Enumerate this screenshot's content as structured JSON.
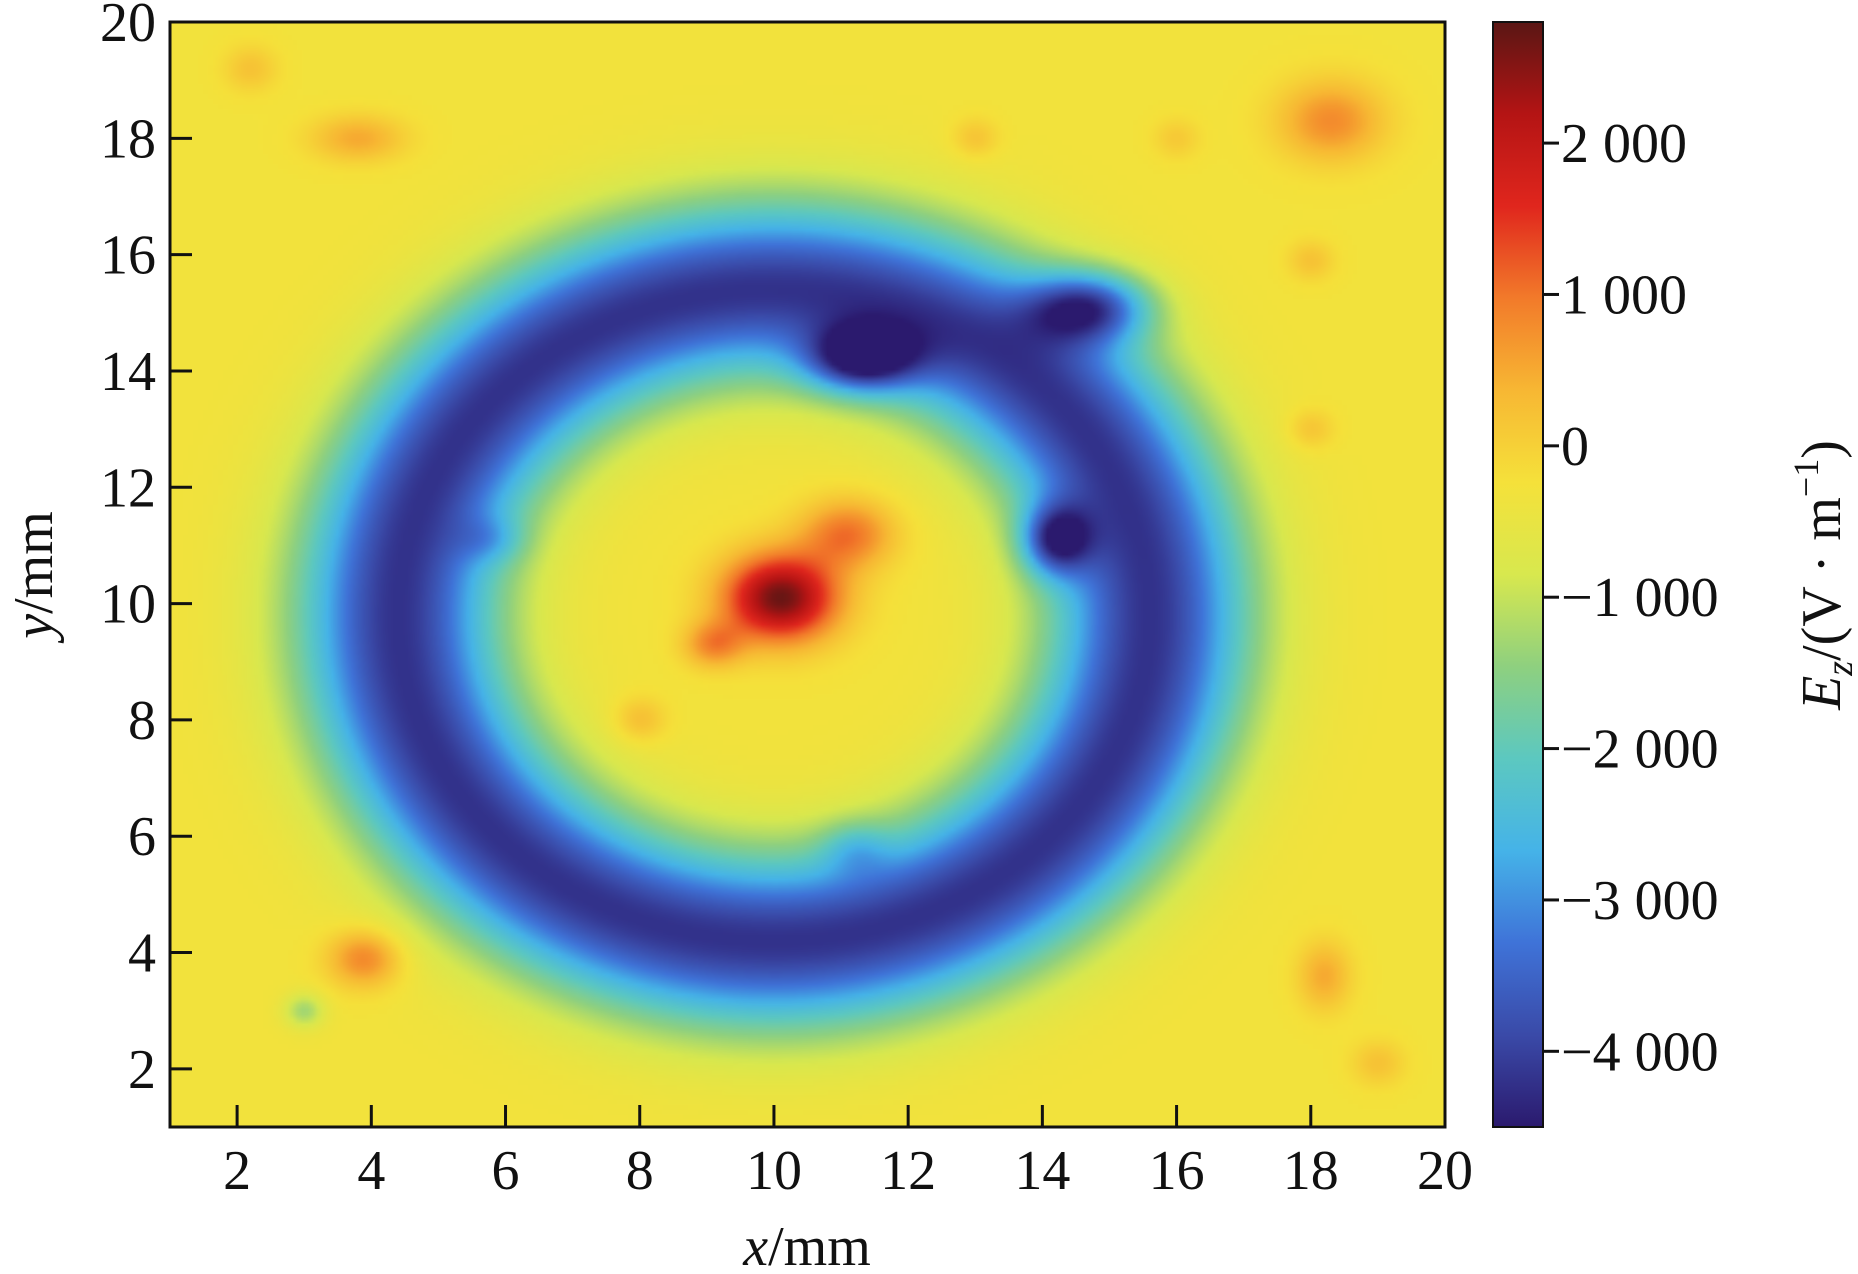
{
  "chart_data": {
    "type": "heatmap",
    "xlabel": {
      "var": "x",
      "unit": "/mm"
    },
    "ylabel": {
      "var": "y",
      "unit": "/mm"
    },
    "xlim": [
      1,
      20
    ],
    "ylim": [
      1,
      20
    ],
    "x_ticks": [
      2,
      4,
      6,
      8,
      10,
      12,
      14,
      16,
      18,
      20
    ],
    "y_ticks": [
      2,
      4,
      6,
      8,
      10,
      12,
      14,
      16,
      18,
      20
    ],
    "x_tick_labels": [
      "2",
      "4",
      "6",
      "8",
      "10",
      "12",
      "14",
      "16",
      "18",
      "20"
    ],
    "y_tick_labels": [
      "2",
      "4",
      "6",
      "8",
      "10",
      "12",
      "14",
      "16",
      "18",
      "20"
    ],
    "colorbar": {
      "label": {
        "var": "E",
        "sub": "z",
        "unit_open": "/(V · m",
        "sup": "−1",
        "unit_close": ")"
      },
      "range": [
        -4500,
        2800
      ],
      "ticks": [
        -4000,
        -3000,
        -2000,
        -1000,
        0,
        1000,
        2000
      ],
      "tick_labels": [
        "−4 000",
        "−3 000",
        "−2 000",
        "−1 000",
        "0",
        "1 000",
        "2 000"
      ],
      "colormap": [
        "#2b1a6e",
        "#3a4aa8",
        "#3f73d8",
        "#45b3e8",
        "#5cc8c0",
        "#8ed07f",
        "#d8e84e",
        "#f5e13a",
        "#f7b733",
        "#f27a2a",
        "#e0261d",
        "#b41414",
        "#5a1614"
      ]
    },
    "background_value": -300,
    "features": [
      {
        "kind": "ring",
        "cx": 10,
        "cy": 9.8,
        "radius": 5.6,
        "width": 1.5,
        "amplitude": -3900
      },
      {
        "kind": "peak",
        "x": 10.1,
        "y": 10.1,
        "sx": 0.85,
        "sy": 0.75,
        "amplitude": 3000
      },
      {
        "kind": "peak",
        "x": 11.1,
        "y": 11.2,
        "sx": 0.7,
        "sy": 0.6,
        "amplitude": 1300
      },
      {
        "kind": "peak",
        "x": 9.1,
        "y": 9.3,
        "sx": 0.45,
        "sy": 0.4,
        "amplitude": 1100
      },
      {
        "kind": "peak",
        "x": 5.8,
        "y": 11.1,
        "sx": 0.5,
        "sy": 0.4,
        "amplitude": -700
      },
      {
        "kind": "peak",
        "x": 11.2,
        "y": 5.8,
        "sx": 0.5,
        "sy": 0.45,
        "amplitude": -800
      },
      {
        "kind": "peak",
        "x": 11.3,
        "y": 14.2,
        "sx": 0.8,
        "sy": 0.55,
        "amplitude": -2800
      },
      {
        "kind": "peak",
        "x": 14.7,
        "y": 15.1,
        "sx": 0.9,
        "sy": 0.6,
        "amplitude": -2800
      },
      {
        "kind": "peak",
        "x": 14.2,
        "y": 11.1,
        "sx": 0.5,
        "sy": 0.6,
        "amplitude": -2600
      },
      {
        "kind": "peak",
        "x": 18.3,
        "y": 18.3,
        "sx": 0.8,
        "sy": 0.7,
        "amplitude": 1100
      },
      {
        "kind": "peak",
        "x": 3.9,
        "y": 3.9,
        "sx": 0.55,
        "sy": 0.5,
        "amplitude": 1200
      },
      {
        "kind": "peak",
        "x": 3.8,
        "y": 18.0,
        "sx": 0.7,
        "sy": 0.4,
        "amplitude": 800
      },
      {
        "kind": "peak",
        "x": 18.2,
        "y": 3.6,
        "sx": 0.4,
        "sy": 0.6,
        "amplitude": 800
      },
      {
        "kind": "peak",
        "x": 2.2,
        "y": 19.2,
        "sx": 0.4,
        "sy": 0.4,
        "amplitude": 500
      },
      {
        "kind": "peak",
        "x": 19.0,
        "y": 2.1,
        "sx": 0.4,
        "sy": 0.4,
        "amplitude": 500
      },
      {
        "kind": "peak",
        "x": 13.0,
        "y": 18.0,
        "sx": 0.35,
        "sy": 0.35,
        "amplitude": 500
      },
      {
        "kind": "peak",
        "x": 16.0,
        "y": 18.0,
        "sx": 0.35,
        "sy": 0.35,
        "amplitude": 400
      },
      {
        "kind": "peak",
        "x": 18.0,
        "y": 15.9,
        "sx": 0.35,
        "sy": 0.35,
        "amplitude": 500
      },
      {
        "kind": "peak",
        "x": 18.0,
        "y": 13.0,
        "sx": 0.35,
        "sy": 0.35,
        "amplitude": 500
      },
      {
        "kind": "peak",
        "x": 8.0,
        "y": 8.0,
        "sx": 0.4,
        "sy": 0.4,
        "amplitude": 600
      },
      {
        "kind": "peak",
        "x": 3.0,
        "y": 3.0,
        "sx": 0.3,
        "sy": 0.3,
        "amplitude": -1000
      }
    ],
    "grid": false,
    "legend": "none"
  }
}
